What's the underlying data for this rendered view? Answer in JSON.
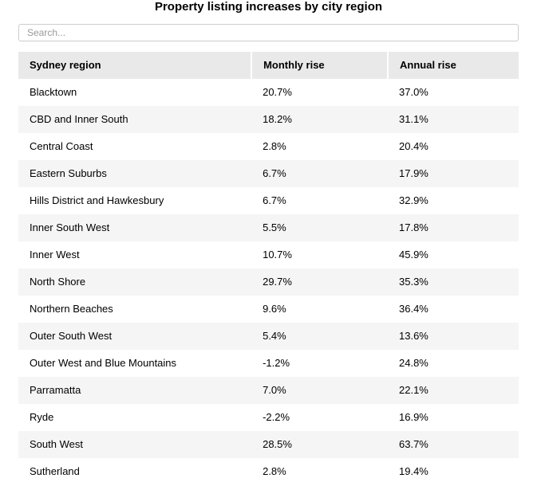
{
  "page": {
    "title": "Property listing increases by city region"
  },
  "search": {
    "placeholder": "Search...",
    "value": ""
  },
  "table": {
    "columns": [
      "Sydney region",
      "Monthly rise",
      "Annual rise"
    ],
    "rows": [
      {
        "region": "Blacktown",
        "monthly": "20.7%",
        "annual": "37.0%"
      },
      {
        "region": "CBD and Inner South",
        "monthly": "18.2%",
        "annual": "31.1%"
      },
      {
        "region": "Central Coast",
        "monthly": "2.8%",
        "annual": "20.4%"
      },
      {
        "region": "Eastern Suburbs",
        "monthly": "6.7%",
        "annual": "17.9%"
      },
      {
        "region": "Hills District and Hawkesbury",
        "monthly": "6.7%",
        "annual": "32.9%"
      },
      {
        "region": "Inner South West",
        "monthly": "5.5%",
        "annual": "17.8%"
      },
      {
        "region": "Inner West",
        "monthly": "10.7%",
        "annual": "45.9%"
      },
      {
        "region": "North Shore",
        "monthly": "29.7%",
        "annual": "35.3%"
      },
      {
        "region": "Northern Beaches",
        "monthly": "9.6%",
        "annual": "36.4%"
      },
      {
        "region": "Outer South West",
        "monthly": "5.4%",
        "annual": "13.6%"
      },
      {
        "region": "Outer West and Blue Mountains",
        "monthly": "-1.2%",
        "annual": "24.8%"
      },
      {
        "region": "Parramatta",
        "monthly": "7.0%",
        "annual": "22.1%"
      },
      {
        "region": "Ryde",
        "monthly": "-2.2%",
        "annual": "16.9%"
      },
      {
        "region": "South West",
        "monthly": "28.5%",
        "annual": "63.7%"
      },
      {
        "region": "Sutherland",
        "monthly": "2.8%",
        "annual": "19.4%"
      }
    ]
  },
  "colors": {
    "header_bg": "#e9e9e9",
    "stripe_bg": "#f5f5f5",
    "input_border": "#cccccc",
    "placeholder_text": "#999999",
    "text": "#000000",
    "background": "#ffffff"
  }
}
